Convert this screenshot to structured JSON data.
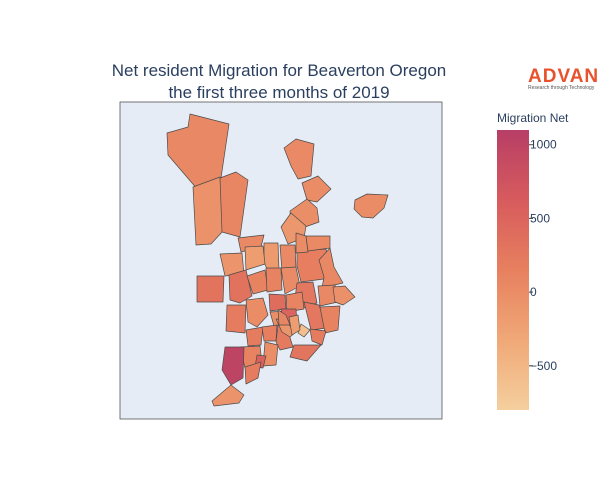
{
  "chart_data": {
    "type": "choropleth",
    "title_lines": [
      "Net resident Migration for Beaverton Oregon",
      "the first three months of 2019"
    ],
    "colorbar": {
      "title": "Migration Net",
      "range": [
        -800,
        1100
      ],
      "ticks": [
        {
          "label": "1000",
          "value": 1000
        },
        {
          "label": "500",
          "value": 500
        },
        {
          "label": "0",
          "value": 0
        },
        {
          "label": "−500",
          "value": -500
        }
      ],
      "colorscale": [
        "#f5cf9e",
        "#f0a877",
        "#e7805f",
        "#d75b5d",
        "#b73e66"
      ]
    },
    "regions": [
      {
        "value": 60
      },
      {
        "value": 40
      },
      {
        "value": 10
      },
      {
        "value": 0
      },
      {
        "value": -60
      },
      {
        "value": 90
      },
      {
        "value": -20
      },
      {
        "value": -120
      },
      {
        "value": 40
      },
      {
        "value": 180
      },
      {
        "value": 60
      },
      {
        "value": 10
      },
      {
        "value": 30
      },
      {
        "value": -160
      },
      {
        "value": -200
      },
      {
        "value": -90
      },
      {
        "value": 40
      },
      {
        "value": 310
      },
      {
        "value": 320
      },
      {
        "value": 120
      },
      {
        "value": 120
      },
      {
        "value": 20
      },
      {
        "value": 260
      },
      {
        "value": 60
      },
      {
        "value": -50
      },
      {
        "value": -10
      },
      {
        "value": 390
      },
      {
        "value": 100
      },
      {
        "value": -20
      },
      {
        "value": 260
      },
      {
        "value": 120
      },
      {
        "value": 200
      },
      {
        "value": 220
      },
      {
        "value": 500
      },
      {
        "value": 180
      },
      {
        "value": 230
      },
      {
        "value": -100
      },
      {
        "value": -600
      },
      {
        "value": 220
      },
      {
        "value": 290
      },
      {
        "value": -20
      },
      {
        "value": 120
      },
      {
        "value": 560
      },
      {
        "value": 1000
      },
      {
        "value": 220
      },
      {
        "value": -80
      },
      {
        "value": 80
      },
      {
        "value": -200
      }
    ]
  },
  "logo": {
    "main": "ADVAN",
    "sub": "Research through Technology",
    "color": "#e8532e"
  },
  "geo_background": "#e5ecf6"
}
